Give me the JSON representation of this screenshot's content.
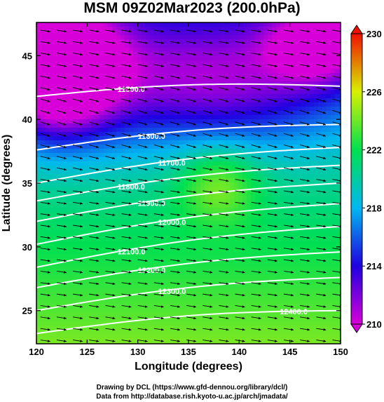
{
  "title": "MSM 09Z02Mar2023 (200.0hPa)",
  "credits": {
    "line1": "Drawing by DCL (https://www.gfd-dennou.org/library/dcl/)",
    "line2": "Data from http://database.rish.kyoto-u.ac.jp/arch/jmadata/"
  },
  "chart_data": {
    "type": "heatmap",
    "title": "MSM 09Z02Mar2023 (200.0hPa)",
    "xlabel": "Longitude (degrees)",
    "ylabel": "Latitude  (degrees)",
    "xlim": [
      120,
      150
    ],
    "ylim": [
      22.4,
      47.6
    ],
    "x_ticks": [
      "120",
      "125",
      "130",
      "135",
      "140",
      "145",
      "150"
    ],
    "y_ticks": [
      "25",
      "30",
      "35",
      "40",
      "45"
    ],
    "x_tick_values": [
      120,
      125,
      130,
      135,
      140,
      145,
      150
    ],
    "y_tick_values": [
      25,
      30,
      35,
      40,
      45
    ],
    "grid": false,
    "colorbar": {
      "placement": "right",
      "min": 210,
      "max": 230,
      "tick_labels": [
        "210",
        "214",
        "218",
        "222",
        "226",
        "230"
      ],
      "tick_values": [
        210,
        214,
        218,
        222,
        226,
        230
      ],
      "colors": [
        "#d800d8",
        "#2000e0",
        "#00b8f0",
        "#00e050",
        "#d8f000",
        "#f01000"
      ]
    },
    "contours": {
      "color": "#ffffff",
      "lines": [
        {
          "label": "11500.0",
          "lat_at_120": 41.8,
          "lat_at_150": 42.6
        },
        {
          "label": "11600.0",
          "lat_at_120": 37.6,
          "lat_at_150": 39.6
        },
        {
          "label": "11700.0",
          "lat_at_120": 35.0,
          "lat_at_150": 37.8
        },
        {
          "label": "11800.0",
          "lat_at_120": 33.6,
          "lat_at_150": 36.4
        },
        {
          "label": "11900.0",
          "lat_at_120": 32.0,
          "lat_at_150": 35.0
        },
        {
          "label": "12000.0",
          "lat_at_120": 30.2,
          "lat_at_150": 33.4
        },
        {
          "label": "12100.0",
          "lat_at_120": 28.4,
          "lat_at_150": 31.6
        },
        {
          "label": "12200.0",
          "lat_at_120": 26.8,
          "lat_at_150": 29.6
        },
        {
          "label": "12300.0",
          "lat_at_120": 25.0,
          "lat_at_150": 27.6
        },
        {
          "label": "12400.0",
          "lat_at_120": 23.2,
          "lat_at_150": 25.0
        }
      ]
    },
    "vectors": {
      "color": "#000000",
      "description_direction": "westerly wind (arrows point east)"
    }
  }
}
